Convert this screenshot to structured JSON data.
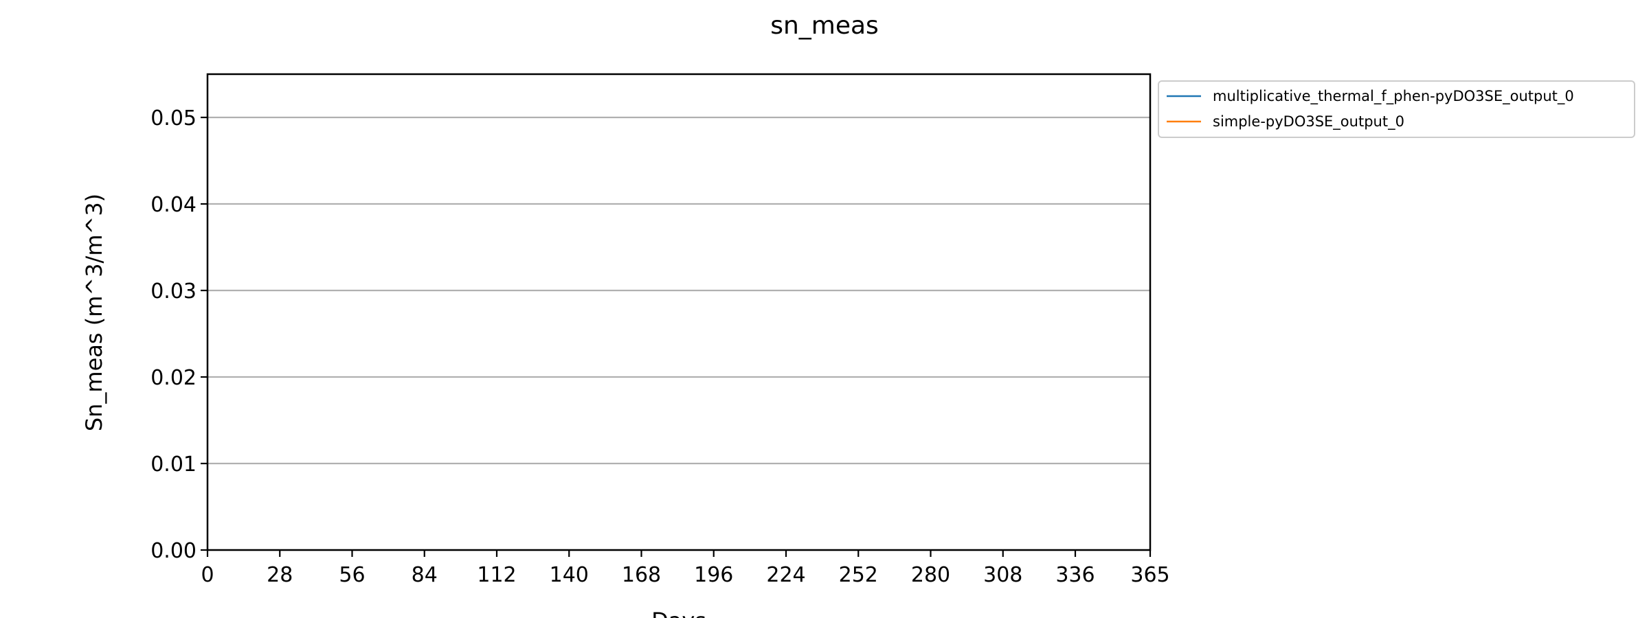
{
  "chart_data": {
    "type": "line",
    "title": "sn_meas",
    "xlabel": "Days",
    "ylabel": "Sn_meas (m^3/m^3)",
    "xlim": [
      0,
      365
    ],
    "ylim": [
      0,
      0.055
    ],
    "x_ticks": [
      0,
      28,
      56,
      84,
      112,
      140,
      168,
      196,
      224,
      252,
      280,
      308,
      336,
      365
    ],
    "y_ticks": [
      0.0,
      0.01,
      0.02,
      0.03,
      0.04,
      0.05
    ],
    "y_tick_labels": [
      "0.00",
      "0.01",
      "0.02",
      "0.03",
      "0.04",
      "0.05"
    ],
    "grid": "horizontal",
    "legend_position": "outside-top-right",
    "series": [
      {
        "name": "multiplicative_thermal_f_phen-pyDO3SE_output_0",
        "color": "#1f77b4",
        "x": [],
        "y": []
      },
      {
        "name": "simple-pyDO3SE_output_0",
        "color": "#ff7f0e",
        "x": [],
        "y": []
      }
    ]
  }
}
